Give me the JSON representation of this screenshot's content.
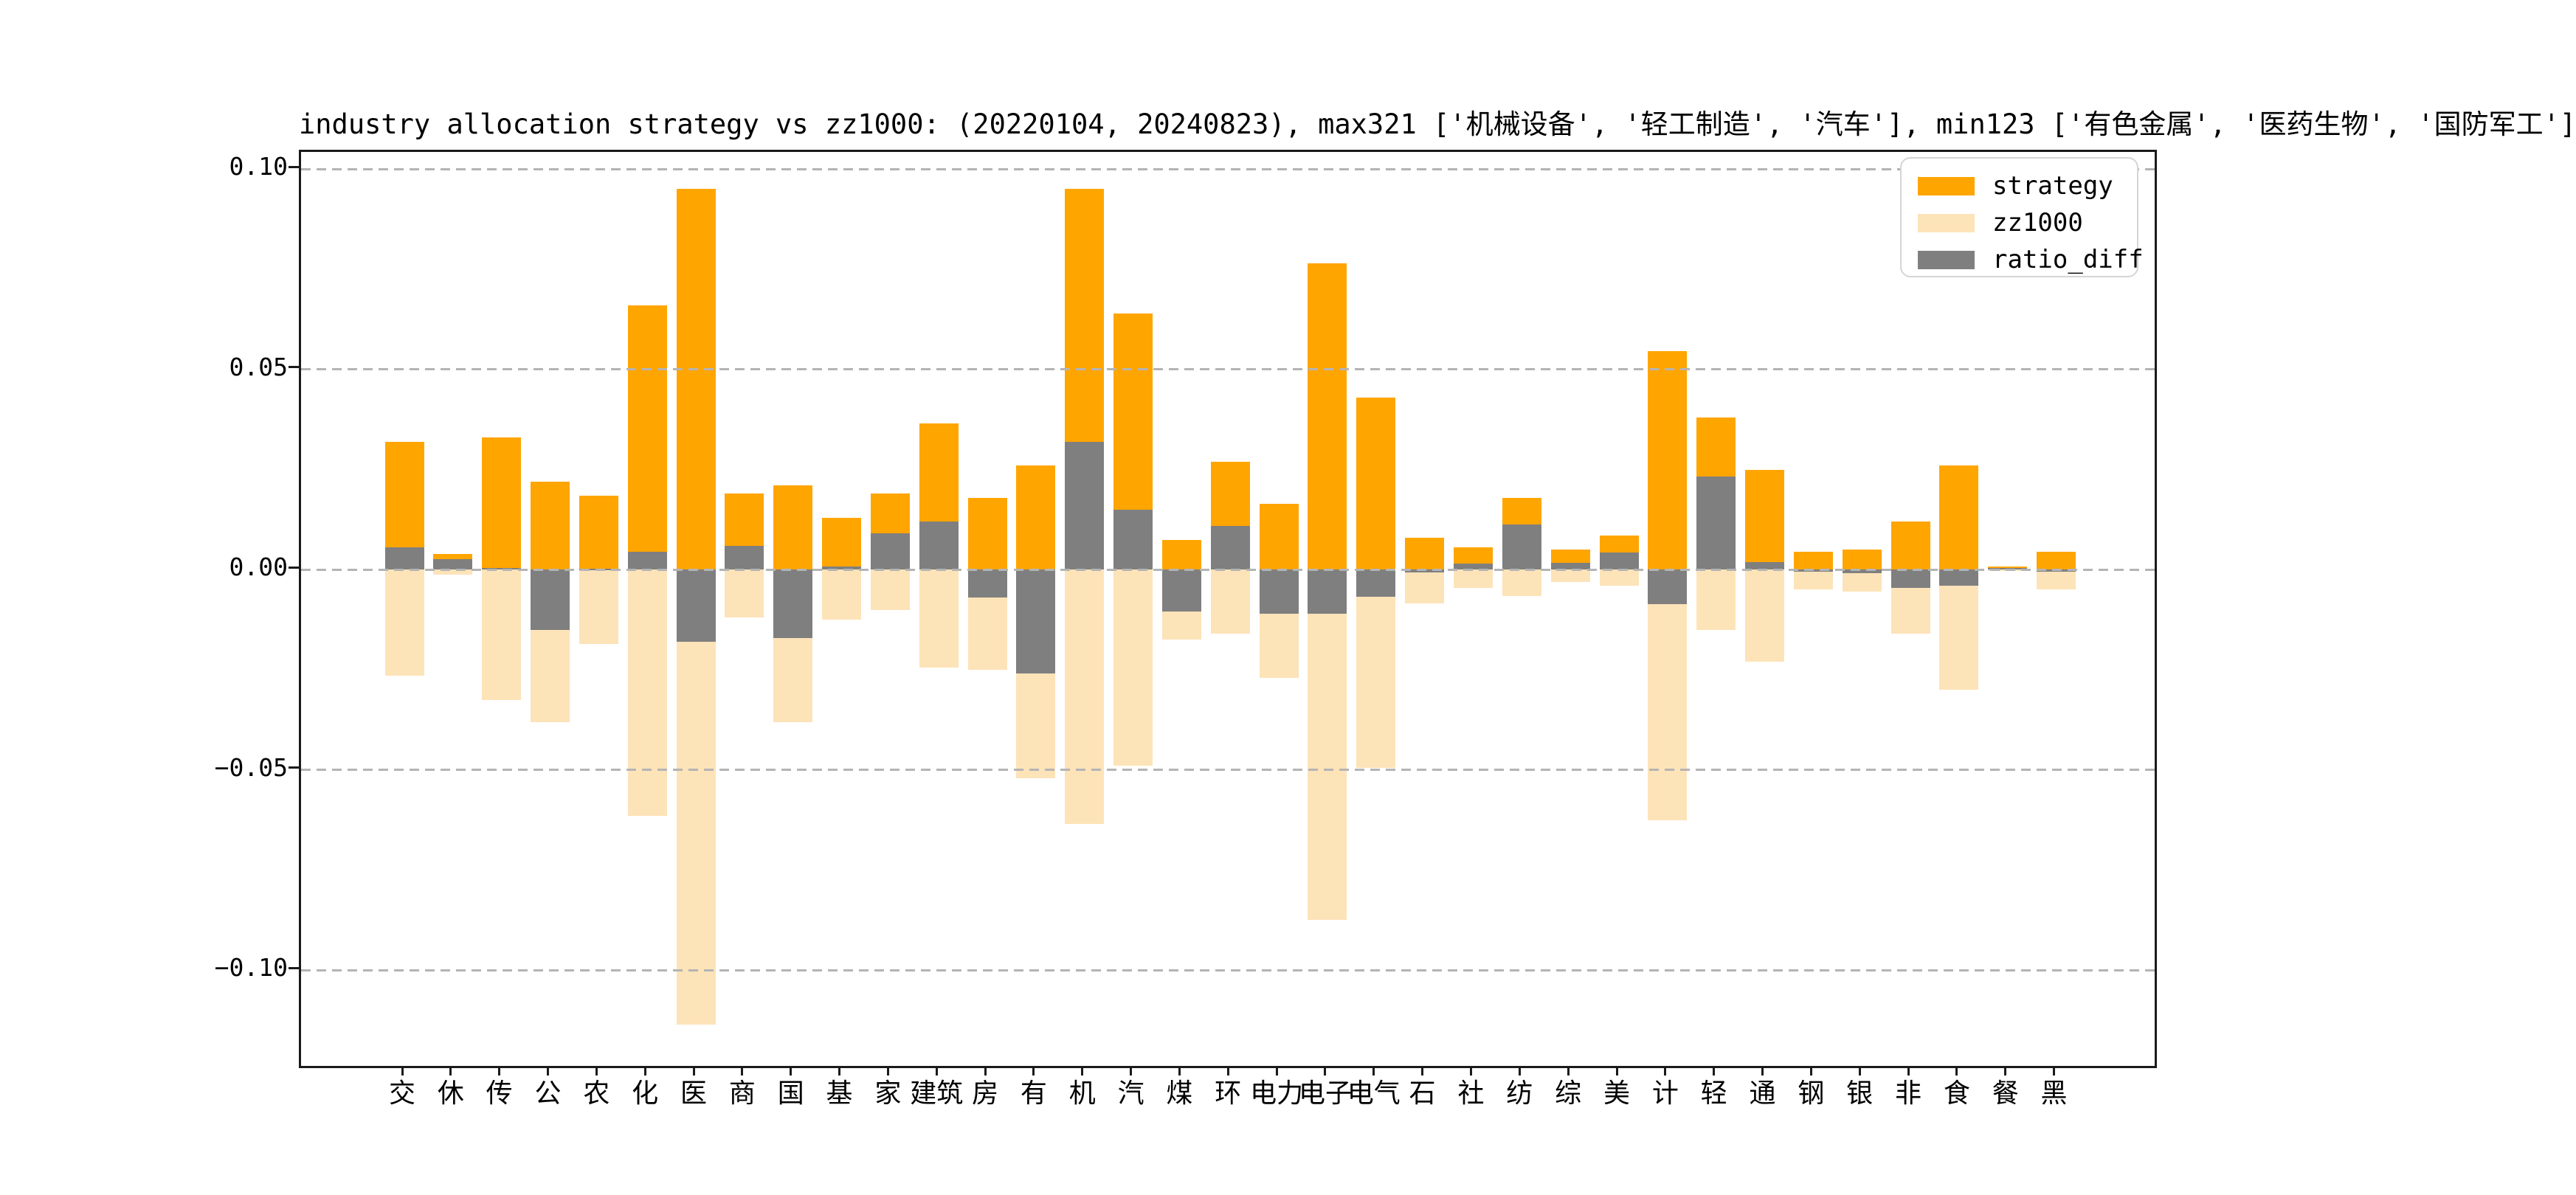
{
  "window": {
    "background": "#ffffff"
  },
  "colors": {
    "strategy": "#ffa500",
    "zz1000": "#fde3b8",
    "ratio_diff": "#7f7f7f",
    "gridline": "#b4b4b4",
    "spine": "#1a1a1a",
    "text": "#000000",
    "legend_border": "#d5d5d5"
  },
  "legend": {
    "position": "upper-right",
    "items": [
      {
        "label": "strategy",
        "color": "#ffa500"
      },
      {
        "label": "zz1000",
        "color": "#fde3b8"
      },
      {
        "label": "ratio_diff",
        "color": "#7f7f7f"
      }
    ]
  },
  "chart_data": {
    "type": "bar",
    "title": "industry allocation strategy vs zz1000: (20220104, 20240823), max321 ['机械设备', '轻工制造', '汽车'], min123 ['有色金属', '医药生物', '国防军工']",
    "xlabel": "",
    "ylabel": "",
    "ylim": [
      -0.1239,
      0.1043
    ],
    "grid": "horizontal dashed gridlines drawn above bars",
    "legend_position": "upper right",
    "categories": [
      "交",
      "休",
      "传",
      "公",
      "农",
      "化",
      "医",
      "商",
      "国",
      "基",
      "家",
      "建筑",
      "房",
      "有",
      "机",
      "汽",
      "煤",
      "环",
      "电力",
      "电子",
      "电气",
      "石",
      "社",
      "纺",
      "综",
      "美",
      "计",
      "轻",
      "通",
      "钢",
      "银",
      "非",
      "食",
      "餐",
      "黑"
    ],
    "y_ticks": {
      "labels": [
        "0.10",
        "0.05",
        "0.00",
        "−0.05",
        "−0.10"
      ],
      "values": [
        0.1,
        0.05,
        0.0,
        -0.05,
        -0.1
      ]
    },
    "series": [
      {
        "name": "strategy",
        "color": "#ffa500",
        "values": [
          0.032,
          0.004,
          0.033,
          0.022,
          0.0185,
          0.066,
          0.095,
          0.019,
          0.021,
          0.013,
          0.019,
          0.0365,
          0.018,
          0.026,
          0.095,
          0.064,
          0.0075,
          0.027,
          0.0165,
          0.0765,
          0.043,
          0.008,
          0.0055,
          0.018,
          0.005,
          0.0085,
          0.0545,
          0.038,
          0.025,
          0.0045,
          0.005,
          0.012,
          0.026,
          0.0008,
          0.0045
        ]
      },
      {
        "name": "zz1000",
        "color": "#fde3b8",
        "values": [
          -0.0265,
          -0.0012,
          -0.0325,
          -0.038,
          -0.0185,
          -0.0615,
          -0.1135,
          -0.012,
          -0.038,
          -0.0125,
          -0.01,
          -0.0245,
          -0.025,
          -0.052,
          -0.0635,
          -0.049,
          -0.0175,
          -0.016,
          -0.027,
          -0.0875,
          -0.0495,
          -0.0085,
          -0.0045,
          -0.0065,
          -0.003,
          -0.004,
          -0.0625,
          -0.015,
          -0.023,
          -0.005,
          -0.0055,
          -0.016,
          -0.03,
          -0.0003,
          -0.005
        ]
      },
      {
        "name": "ratio_diff",
        "color": "#7f7f7f",
        "values": [
          0.0055,
          0.0027,
          0.0004,
          -0.015,
          0.0003,
          0.0045,
          -0.018,
          0.006,
          -0.017,
          0.0008,
          0.009,
          0.012,
          -0.007,
          -0.026,
          0.032,
          0.015,
          -0.0105,
          0.011,
          -0.011,
          -0.011,
          -0.0068,
          -0.0006,
          0.0016,
          0.0113,
          0.0017,
          0.0042,
          -0.0086,
          0.0233,
          0.0019,
          -0.0005,
          -0.0008,
          -0.0045,
          -0.004,
          0.0005,
          -0.0005
        ]
      }
    ]
  }
}
